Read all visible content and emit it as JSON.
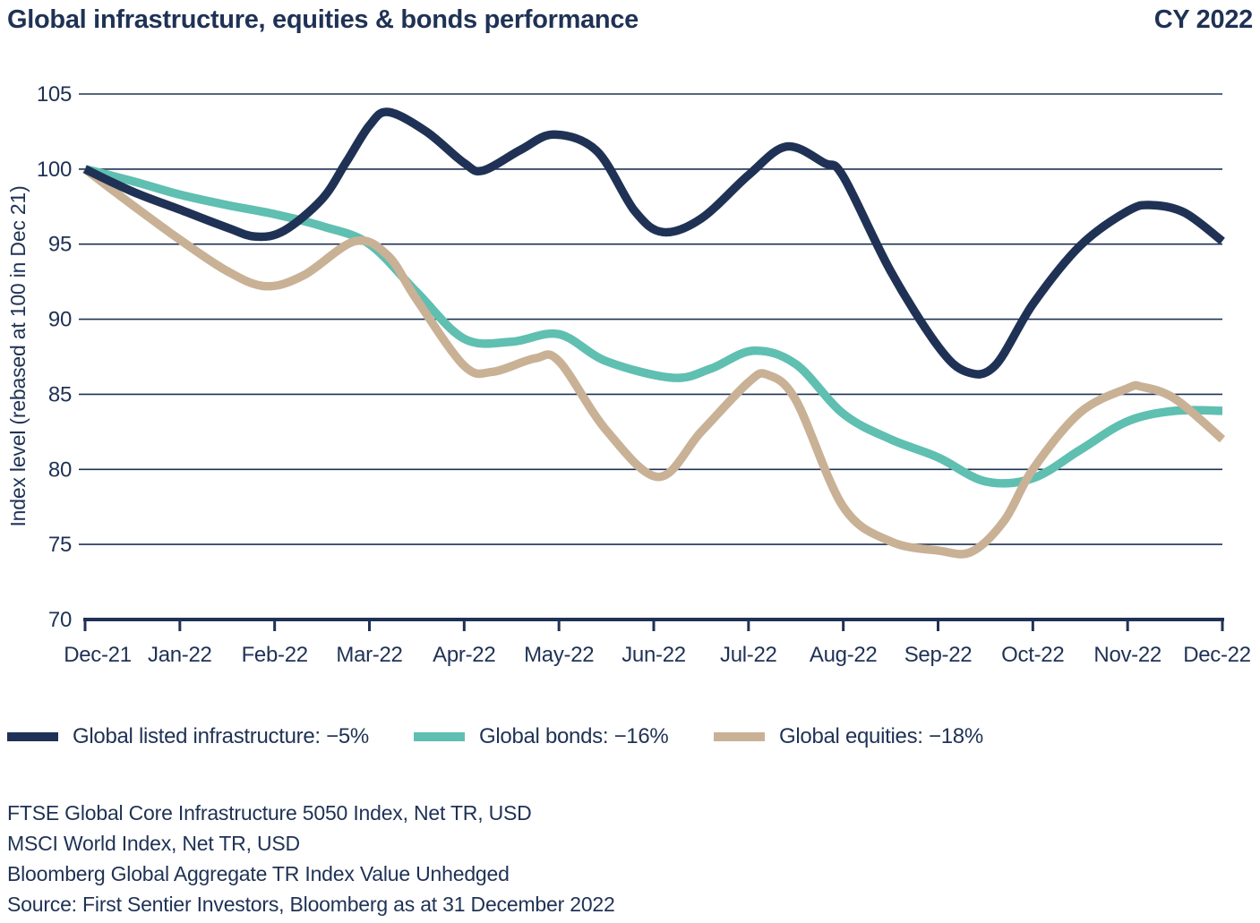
{
  "header": {
    "title": "Global infrastructure, equities & bonds performance",
    "period": "CY 2022"
  },
  "chart_data": {
    "type": "line",
    "title": "Global infrastructure, equities & bonds performance",
    "subtitle": "CY 2022",
    "grid": true,
    "legend_position": "bottom",
    "x_axis": {
      "labels": [
        "Dec-21",
        "Jan-22",
        "Feb-22",
        "Mar-22",
        "Apr-22",
        "May-22",
        "Jun-22",
        "Jul-22",
        "Aug-22",
        "Sep-22",
        "Oct-22",
        "Nov-22",
        "Dec-22"
      ],
      "range": [
        0,
        12
      ]
    },
    "y_axis": {
      "title": "Index level (rebased at 100 in Dec 21)",
      "ticks": [
        70,
        75,
        80,
        85,
        90,
        95,
        100,
        105
      ],
      "gridlines": [
        75,
        80,
        85,
        90,
        95,
        100,
        105
      ],
      "range": [
        70,
        105
      ]
    },
    "series": [
      {
        "name": "Global listed infrastructure",
        "legend_label": "Global listed infrastructure: −5%",
        "color": "#1f3255",
        "points": [
          [
            0,
            100
          ],
          [
            0.5,
            98.5
          ],
          [
            1,
            97.3
          ],
          [
            1.5,
            96.1
          ],
          [
            1.8,
            95.5
          ],
          [
            2.1,
            95.9
          ],
          [
            2.5,
            98.0
          ],
          [
            2.75,
            100.4
          ],
          [
            3,
            102.9
          ],
          [
            3.2,
            103.8
          ],
          [
            3.6,
            102.5
          ],
          [
            4,
            100.4
          ],
          [
            4.2,
            99.9
          ],
          [
            4.6,
            101.3
          ],
          [
            4.95,
            102.3
          ],
          [
            5.4,
            101.2
          ],
          [
            5.8,
            97.2
          ],
          [
            6.1,
            95.8
          ],
          [
            6.5,
            96.7
          ],
          [
            7,
            99.6
          ],
          [
            7.4,
            101.5
          ],
          [
            7.8,
            100.4
          ],
          [
            8,
            99.5
          ],
          [
            8.5,
            93.2
          ],
          [
            9,
            88.2
          ],
          [
            9.3,
            86.5
          ],
          [
            9.6,
            86.9
          ],
          [
            10,
            91.0
          ],
          [
            10.5,
            94.9
          ],
          [
            11,
            97.2
          ],
          [
            11.25,
            97.6
          ],
          [
            11.6,
            97.1
          ],
          [
            12,
            95.2
          ]
        ]
      },
      {
        "name": "Global bonds",
        "legend_label": "Global bonds: −16%",
        "color": "#5fbfb1",
        "points": [
          [
            0,
            100
          ],
          [
            0.5,
            99.2
          ],
          [
            1,
            98.3
          ],
          [
            1.5,
            97.6
          ],
          [
            2,
            97.0
          ],
          [
            2.5,
            96.2
          ],
          [
            3,
            95.0
          ],
          [
            3.5,
            91.8
          ],
          [
            4,
            88.7
          ],
          [
            4.5,
            88.5
          ],
          [
            5,
            89.0
          ],
          [
            5.5,
            87.2
          ],
          [
            6.2,
            86.1
          ],
          [
            6.6,
            86.7
          ],
          [
            7.05,
            87.9
          ],
          [
            7.5,
            87.0
          ],
          [
            8,
            83.7
          ],
          [
            8.5,
            82.0
          ],
          [
            9,
            80.8
          ],
          [
            9.5,
            79.2
          ],
          [
            10,
            79.4
          ],
          [
            10.5,
            81.3
          ],
          [
            11,
            83.2
          ],
          [
            11.5,
            83.9
          ],
          [
            12,
            83.9
          ]
        ]
      },
      {
        "name": "Global equities",
        "legend_label": "Global equities: −18%",
        "color": "#c9b196",
        "points": [
          [
            0,
            100
          ],
          [
            0.5,
            97.6
          ],
          [
            1,
            95.3
          ],
          [
            1.5,
            93.2
          ],
          [
            1.9,
            92.2
          ],
          [
            2.3,
            92.9
          ],
          [
            2.85,
            95.2
          ],
          [
            3.2,
            94.2
          ],
          [
            3.5,
            91.3
          ],
          [
            4,
            86.9
          ],
          [
            4.3,
            86.5
          ],
          [
            4.75,
            87.4
          ],
          [
            5,
            87.2
          ],
          [
            5.5,
            82.6
          ],
          [
            6.05,
            79.5
          ],
          [
            6.5,
            82.5
          ],
          [
            7,
            85.8
          ],
          [
            7.2,
            86.3
          ],
          [
            7.5,
            84.6
          ],
          [
            8,
            77.5
          ],
          [
            8.5,
            75.2
          ],
          [
            9,
            74.6
          ],
          [
            9.35,
            74.5
          ],
          [
            9.7,
            76.6
          ],
          [
            10,
            80.0
          ],
          [
            10.5,
            83.8
          ],
          [
            11,
            85.4
          ],
          [
            11.15,
            85.5
          ],
          [
            11.5,
            84.7
          ],
          [
            12,
            82.0
          ]
        ]
      }
    ]
  },
  "footnotes": {
    "lines": [
      "FTSE Global Core Infrastructure 5050 Index, Net TR, USD",
      "MSCI World Index, Net TR, USD",
      "Bloomberg Global Aggregate TR Index Value Unhedged",
      "Source: First Sentier Investors, Bloomberg as at 31 December 2022"
    ]
  },
  "colors": {
    "text_navy": "#1f3255",
    "infrastructure": "#1f3255",
    "bonds": "#5fbfb1",
    "equities": "#c9b196",
    "background": "#ffffff"
  }
}
